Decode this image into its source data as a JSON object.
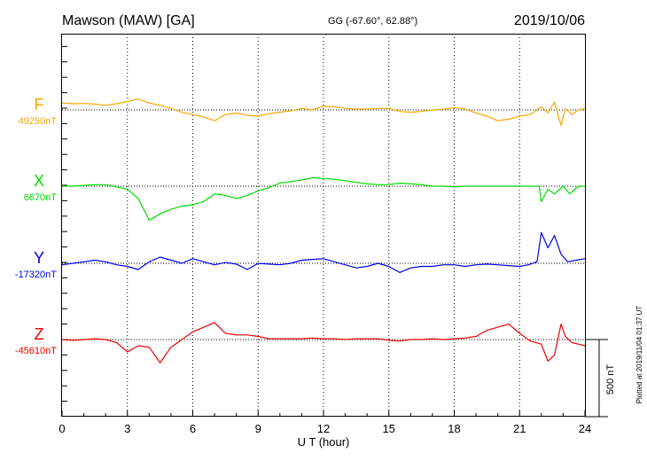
{
  "header": {
    "station": "Mawson (MAW)  [GA]",
    "coords": "GG (-67.60°,  62.88°)",
    "date": "2019/10/06"
  },
  "footer_note": "Plotted at 2019/11/04 01:37 UT",
  "chart_data": {
    "type": "line",
    "xlabel": "U T (hour)",
    "xlim": [
      0,
      24
    ],
    "xticks": [
      "0",
      "3",
      "6",
      "9",
      "12",
      "15",
      "18",
      "21",
      "24"
    ],
    "grid": true,
    "scale_bar_label": "500 nT",
    "scale_bar_nT": 500,
    "series": [
      {
        "name": "F",
        "baseline_label": "49250nT",
        "baseline": 49250,
        "color": "#f5a800",
        "x": [
          0,
          0.5,
          1,
          1.5,
          2,
          2.5,
          3,
          3.5,
          4,
          4.5,
          5,
          5.5,
          6,
          6.5,
          7,
          7.5,
          8,
          8.5,
          9,
          9.5,
          10,
          10.5,
          11,
          11.5,
          12,
          12.5,
          13,
          13.5,
          14,
          14.5,
          15,
          15.5,
          16,
          16.5,
          17,
          17.5,
          18,
          18.5,
          19,
          19.5,
          20,
          20.5,
          21,
          21.5,
          22,
          22.3,
          22.6,
          22.9,
          23.1,
          23.4,
          23.7,
          24
        ],
        "values": [
          45,
          40,
          42,
          38,
          30,
          40,
          55,
          70,
          45,
          30,
          10,
          -15,
          -30,
          -45,
          -70,
          -30,
          -20,
          -35,
          -40,
          -25,
          -15,
          -5,
          10,
          0,
          25,
          20,
          10,
          5,
          5,
          10,
          10,
          -10,
          -15,
          -10,
          0,
          5,
          15,
          5,
          -20,
          -40,
          -70,
          -60,
          -40,
          -30,
          20,
          -20,
          50,
          -100,
          10,
          -30,
          0,
          10
        ]
      },
      {
        "name": "X",
        "baseline_label": "6670nT",
        "baseline": 6670,
        "color": "#00dd00",
        "x": [
          0,
          0.5,
          1,
          1.5,
          2,
          2.5,
          3,
          3.5,
          4,
          4.5,
          5,
          5.5,
          6,
          6.5,
          7,
          7.5,
          8,
          8.5,
          9,
          9.5,
          10,
          10.5,
          11,
          11.5,
          12,
          12.5,
          13,
          13.5,
          14,
          14.5,
          15,
          15.5,
          16,
          16.5,
          17,
          17.5,
          18,
          18.5,
          19,
          19.5,
          20,
          20.5,
          21,
          21.5,
          21.9,
          22,
          22.3,
          22.6,
          23,
          23.3,
          23.7,
          24
        ],
        "values": [
          0,
          0,
          5,
          10,
          10,
          -5,
          -20,
          -80,
          -220,
          -180,
          -150,
          -130,
          -120,
          -100,
          -50,
          -60,
          -80,
          -60,
          -30,
          -10,
          20,
          30,
          40,
          55,
          50,
          45,
          35,
          25,
          15,
          10,
          10,
          20,
          15,
          10,
          0,
          0,
          -5,
          0,
          0,
          0,
          0,
          0,
          0,
          0,
          0,
          -100,
          -20,
          -50,
          0,
          -50,
          0,
          0
        ]
      },
      {
        "name": "Y",
        "baseline_label": "-17320nT",
        "baseline": -17320,
        "color": "#0000ee",
        "x": [
          0,
          0.5,
          1,
          1.5,
          2,
          2.5,
          3,
          3.5,
          4,
          4.5,
          5,
          5.5,
          6,
          6.5,
          7,
          7.5,
          8,
          8.5,
          9,
          9.5,
          10,
          10.5,
          11,
          11.5,
          12,
          12.5,
          13,
          13.5,
          14,
          14.5,
          15,
          15.5,
          16,
          16.5,
          17,
          17.5,
          18,
          18.5,
          19,
          19.5,
          20,
          20.5,
          21,
          21.4,
          21.8,
          22,
          22.3,
          22.6,
          22.9,
          23.2,
          23.6,
          24
        ],
        "values": [
          -10,
          0,
          10,
          20,
          10,
          -10,
          -20,
          -40,
          10,
          40,
          20,
          0,
          30,
          10,
          -10,
          5,
          -5,
          -40,
          0,
          -5,
          -10,
          0,
          20,
          25,
          30,
          10,
          -10,
          -30,
          -20,
          0,
          -20,
          -60,
          -30,
          -20,
          -20,
          -10,
          -10,
          -20,
          -10,
          -5,
          -10,
          -15,
          -20,
          -10,
          10,
          200,
          100,
          180,
          60,
          10,
          20,
          30
        ]
      },
      {
        "name": "Z",
        "baseline_label": "-45610nT",
        "baseline": -45610,
        "color": "#ee0000",
        "x": [
          0,
          0.5,
          1,
          1.5,
          2,
          2.5,
          3,
          3.5,
          4,
          4.5,
          5,
          5.5,
          6,
          6.5,
          7,
          7.5,
          8,
          8.5,
          9,
          9.5,
          10,
          10.5,
          11,
          11.5,
          12,
          12.5,
          13,
          13.5,
          14,
          14.5,
          15,
          15.5,
          16,
          16.5,
          17,
          17.5,
          18,
          18.5,
          19,
          19.5,
          20,
          20.5,
          21,
          21.5,
          22,
          22.3,
          22.6,
          22.9,
          23.1,
          23.4,
          23.7,
          24
        ],
        "values": [
          0,
          -5,
          0,
          5,
          0,
          -20,
          -80,
          -40,
          -50,
          -150,
          -50,
          0,
          50,
          80,
          110,
          40,
          30,
          30,
          20,
          5,
          5,
          5,
          5,
          10,
          5,
          5,
          0,
          5,
          5,
          5,
          -5,
          -10,
          0,
          0,
          5,
          0,
          5,
          10,
          20,
          60,
          80,
          100,
          40,
          -10,
          -30,
          -140,
          -100,
          100,
          20,
          -20,
          -30,
          -40
        ]
      }
    ]
  }
}
